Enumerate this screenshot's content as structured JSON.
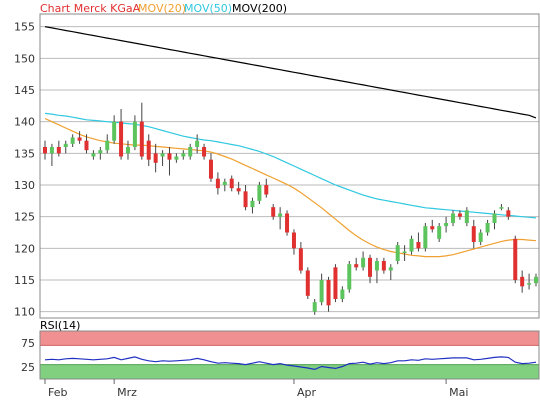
{
  "chart_data": [
    {
      "type": "candlestick",
      "legend": {
        "placement": "top-left",
        "entries": [
          {
            "label": "Chart Merck KGaA",
            "color": "#e03030"
          },
          {
            "label": "MOV(20)",
            "color": "#f0a030"
          },
          {
            "label": "MOV(50)",
            "color": "#30c8e0"
          },
          {
            "label": "MOV(200)",
            "color": "#000000"
          }
        ]
      },
      "ylim": [
        109,
        157
      ],
      "y_ticks": [
        "110",
        "115",
        "120",
        "125",
        "130",
        "135",
        "140",
        "145",
        "150",
        "155"
      ],
      "grid": true,
      "x_labels": [
        "Feb",
        "Mrz",
        "Apr",
        "Mai"
      ],
      "up_color": "#5cc45c",
      "down_color": "#e03030",
      "candles": [
        [
          136.0,
          137.0,
          134.0,
          135.0
        ],
        [
          135.0,
          136.5,
          133.0,
          136.0
        ],
        [
          136.0,
          137.0,
          134.5,
          135.0
        ],
        [
          136.0,
          137.0,
          135.0,
          136.5
        ],
        [
          136.5,
          138.0,
          136.0,
          137.5
        ],
        [
          137.5,
          138.5,
          136.5,
          137.0
        ],
        [
          137.0,
          138.0,
          135.0,
          135.5
        ],
        [
          134.5,
          135.5,
          134.0,
          135.0
        ],
        [
          135.0,
          136.0,
          134.0,
          135.5
        ],
        [
          135.5,
          138.0,
          135.0,
          137.0
        ],
        [
          137.0,
          141.0,
          136.5,
          140.0
        ],
        [
          140.0,
          142.0,
          134.0,
          134.5
        ],
        [
          135.0,
          137.0,
          134.0,
          136.0
        ],
        [
          136.0,
          141.0,
          135.5,
          140.0
        ],
        [
          140.0,
          143.0,
          134.0,
          134.5
        ],
        [
          137.0,
          138.0,
          133.0,
          134.0
        ],
        [
          135.0,
          136.5,
          132.0,
          133.5
        ],
        [
          134.5,
          135.5,
          133.0,
          135.0
        ],
        [
          135.0,
          136.0,
          131.5,
          134.0
        ],
        [
          134.0,
          135.0,
          133.5,
          134.5
        ],
        [
          134.5,
          135.5,
          134.0,
          135.0
        ],
        [
          134.5,
          136.5,
          134.0,
          136.0
        ],
        [
          136.0,
          138.0,
          135.0,
          137.0
        ],
        [
          136.0,
          136.5,
          134.0,
          134.5
        ],
        [
          134.0,
          135.0,
          130.5,
          131.0
        ],
        [
          131.0,
          132.0,
          128.5,
          129.5
        ],
        [
          130.0,
          131.0,
          129.0,
          130.5
        ],
        [
          131.0,
          131.5,
          129.0,
          129.5
        ],
        [
          129.5,
          130.5,
          128.5,
          129.0
        ],
        [
          129.0,
          130.0,
          126.0,
          126.5
        ],
        [
          126.5,
          128.0,
          125.5,
          127.5
        ],
        [
          127.5,
          130.5,
          127.0,
          130.0
        ],
        [
          130.0,
          131.0,
          128.0,
          128.5
        ],
        [
          126.5,
          127.0,
          124.5,
          125.0
        ],
        [
          125.0,
          126.5,
          123.0,
          125.5
        ],
        [
          125.5,
          126.0,
          122.0,
          122.5
        ],
        [
          122.5,
          123.0,
          119.0,
          120.0
        ],
        [
          120.0,
          121.0,
          116.0,
          116.5
        ],
        [
          116.5,
          117.0,
          112.0,
          112.5
        ],
        [
          110.0,
          112.0,
          109.5,
          111.5
        ],
        [
          111.5,
          116.0,
          111.0,
          115.0
        ],
        [
          115.0,
          115.5,
          110.0,
          111.0
        ],
        [
          117.0,
          117.5,
          111.5,
          112.0
        ],
        [
          112.0,
          114.0,
          111.5,
          113.5
        ],
        [
          113.5,
          118.0,
          113.0,
          117.5
        ],
        [
          117.5,
          118.5,
          116.5,
          117.0
        ],
        [
          117.0,
          119.5,
          116.5,
          118.5
        ],
        [
          118.5,
          119.0,
          114.5,
          115.5
        ],
        [
          116.5,
          118.5,
          114.5,
          118.0
        ],
        [
          118.0,
          118.5,
          116.0,
          116.5
        ],
        [
          116.5,
          117.5,
          115.0,
          117.0
        ],
        [
          118.0,
          121.0,
          117.5,
          120.5
        ],
        [
          119.5,
          120.5,
          118.0,
          119.5
        ],
        [
          119.5,
          122.0,
          119.0,
          121.5
        ],
        [
          121.0,
          122.5,
          119.5,
          120.0
        ],
        [
          120.0,
          124.0,
          119.5,
          123.5
        ],
        [
          123.5,
          124.5,
          122.5,
          123.0
        ],
        [
          121.5,
          124.0,
          121.0,
          123.5
        ],
        [
          123.5,
          125.0,
          122.5,
          124.0
        ],
        [
          124.0,
          126.0,
          123.5,
          125.5
        ],
        [
          125.5,
          126.0,
          124.5,
          125.0
        ],
        [
          124.0,
          126.5,
          123.5,
          126.0
        ],
        [
          123.5,
          124.5,
          120.0,
          121.0
        ],
        [
          121.0,
          123.0,
          120.5,
          122.5
        ],
        [
          122.5,
          124.5,
          122.0,
          124.0
        ],
        [
          124.0,
          126.0,
          123.0,
          125.5
        ],
        [
          126.5,
          127.0,
          126.0,
          126.5
        ],
        [
          126.0,
          126.5,
          124.5,
          125.0
        ],
        [
          121.5,
          122.0,
          114.5,
          115.0
        ],
        [
          115.5,
          116.5,
          113.0,
          114.0
        ],
        [
          114.5,
          116.0,
          113.5,
          114.5
        ],
        [
          114.5,
          116.0,
          114.0,
          115.5
        ]
      ],
      "mov20": [
        140.5,
        140.0,
        139.5,
        139.0,
        138.5,
        138.0,
        137.6,
        137.3,
        137.0,
        136.8,
        136.6,
        136.5,
        136.4,
        136.3,
        136.3,
        136.2,
        136.1,
        136.0,
        135.9,
        135.8,
        135.7,
        135.6,
        135.5,
        135.4,
        135.2,
        134.9,
        134.5,
        134.1,
        133.6,
        133.1,
        132.6,
        132.1,
        131.6,
        131.1,
        130.6,
        130.1,
        129.5,
        128.8,
        128.0,
        127.2,
        126.4,
        125.5,
        124.6,
        123.7,
        122.8,
        122.0,
        121.3,
        120.7,
        120.2,
        119.8,
        119.5,
        119.3,
        119.1,
        118.9,
        118.8,
        118.7,
        118.7,
        118.7,
        118.8,
        119.0,
        119.3,
        119.6,
        119.9,
        120.2,
        120.5,
        120.8,
        121.1,
        121.3,
        121.4,
        121.4,
        121.3,
        121.2
      ],
      "mov50": [
        141.3,
        141.2,
        141.0,
        140.9,
        140.7,
        140.5,
        140.3,
        140.2,
        140.1,
        140.0,
        139.9,
        139.8,
        139.7,
        139.6,
        139.4,
        139.2,
        138.9,
        138.6,
        138.3,
        138.0,
        137.7,
        137.5,
        137.3,
        137.1,
        137.0,
        136.8,
        136.6,
        136.4,
        136.2,
        135.9,
        135.6,
        135.3,
        134.9,
        134.5,
        134.0,
        133.5,
        133.0,
        132.5,
        132.0,
        131.5,
        131.0,
        130.5,
        130.0,
        129.6,
        129.2,
        128.8,
        128.4,
        128.1,
        127.8,
        127.6,
        127.4,
        127.2,
        127.0,
        126.8,
        126.6,
        126.4,
        126.3,
        126.2,
        126.1,
        126.0,
        125.9,
        125.8,
        125.7,
        125.6,
        125.5,
        125.4,
        125.3,
        125.2,
        125.1,
        125.0,
        124.9,
        124.8
      ],
      "mov200": [
        155.0,
        154.8,
        154.6,
        154.4,
        154.2,
        154.0,
        153.8,
        153.6,
        153.4,
        153.2,
        153.0,
        152.8,
        152.6,
        152.4,
        152.2,
        152.0,
        151.8,
        151.6,
        151.4,
        151.2,
        151.0,
        150.8,
        150.6,
        150.4,
        150.2,
        150.0,
        149.8,
        149.6,
        149.4,
        149.2,
        149.0,
        148.8,
        148.6,
        148.4,
        148.2,
        148.0,
        147.8,
        147.6,
        147.4,
        147.2,
        147.0,
        146.8,
        146.6,
        146.4,
        146.2,
        146.0,
        145.8,
        145.6,
        145.4,
        145.2,
        145.0,
        144.8,
        144.6,
        144.4,
        144.2,
        144.0,
        143.8,
        143.6,
        143.4,
        143.2,
        143.0,
        142.8,
        142.6,
        142.4,
        142.2,
        142.0,
        141.8,
        141.6,
        141.4,
        141.2,
        141.0,
        140.6
      ]
    },
    {
      "type": "line",
      "legend": {
        "placement": "top-left",
        "entries": [
          {
            "label": "RSI(14)",
            "color": "#000000"
          }
        ]
      },
      "ylim": [
        0,
        100
      ],
      "y_ticks": [
        "25",
        "75"
      ],
      "overbought_zone": [
        70,
        100
      ],
      "oversold_zone": [
        0,
        30
      ],
      "zone_colors": {
        "overbought": "#f09090",
        "oversold": "#80d080"
      },
      "line_color": "#2030c0",
      "values": [
        40,
        41,
        40,
        42,
        43,
        42,
        41,
        40,
        41,
        42,
        45,
        40,
        43,
        46,
        41,
        38,
        36,
        38,
        37,
        38,
        39,
        40,
        43,
        40,
        36,
        33,
        34,
        33,
        32,
        30,
        33,
        36,
        33,
        30,
        32,
        29,
        27,
        25,
        23,
        20,
        26,
        24,
        22,
        26,
        32,
        33,
        35,
        31,
        34,
        32,
        34,
        38,
        38,
        40,
        39,
        42,
        41,
        42,
        43,
        44,
        44,
        44,
        40,
        41,
        43,
        45,
        46,
        45,
        35,
        32,
        33,
        35
      ]
    }
  ]
}
